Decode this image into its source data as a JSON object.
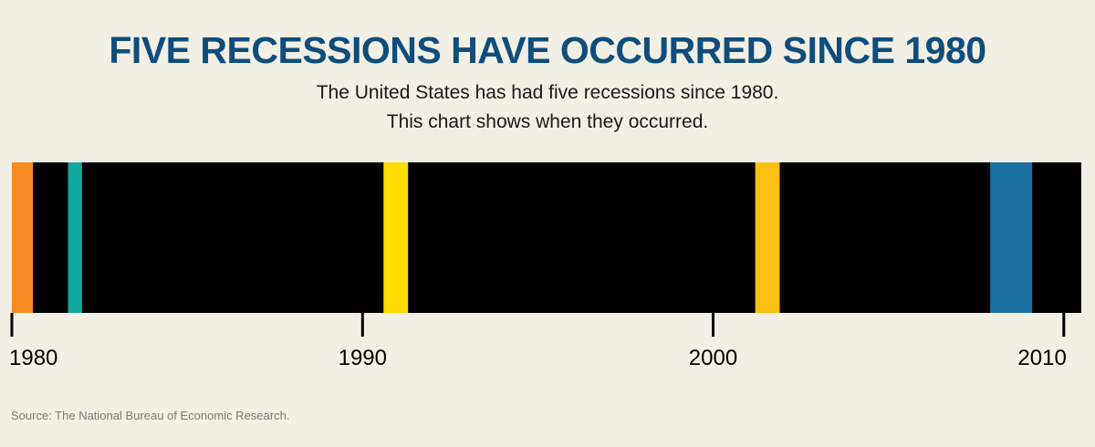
{
  "header": {
    "title": "FIVE RECESSIONS HAVE OCCURRED SINCE 1980",
    "subtitle_line1": "The United States has had five recessions since 1980.",
    "subtitle_line2": "This chart shows when they occurred."
  },
  "footer": {
    "source": "Source: The National Bureau of Economic Research."
  },
  "chart_data": {
    "type": "timeline",
    "title": "FIVE RECESSIONS HAVE OCCURRED SINCE 1980",
    "xlim": [
      1980,
      2010.5
    ],
    "ticks": [
      1980,
      1990,
      2000,
      2010
    ],
    "tick_labels": [
      "1980",
      "1990",
      "2000",
      "2010"
    ],
    "background_color": "#000000",
    "recessions": [
      {
        "start": 1980.0,
        "end": 1980.6,
        "color": "#f78a21"
      },
      {
        "start": 1981.6,
        "end": 1982.0,
        "color": "#13a89e"
      },
      {
        "start": 1990.6,
        "end": 1991.3,
        "color": "#ffdd00"
      },
      {
        "start": 2001.2,
        "end": 2001.9,
        "color": "#ffbf13"
      },
      {
        "start": 2007.9,
        "end": 2009.1,
        "color": "#1a6fa3"
      }
    ]
  }
}
